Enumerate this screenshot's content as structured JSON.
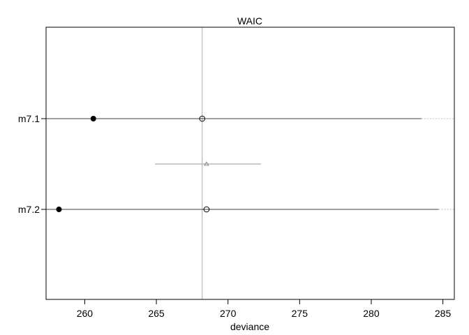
{
  "chart_data": {
    "type": "scatter",
    "title": "WAIC",
    "xlabel": "deviance",
    "ylabel": "",
    "xlim": [
      257.3,
      285.8
    ],
    "x_ticks": [
      260,
      265,
      270,
      275,
      280,
      285
    ],
    "models": [
      {
        "label": "m7.1",
        "in_sample_deviance": 260.6,
        "waic": 268.2,
        "interval": [
          252.9,
          283.5
        ],
        "interval_upper_extended": 286.0
      },
      {
        "label": "m7.2",
        "in_sample_deviance": 258.2,
        "waic": 268.5,
        "interval": [
          252.3,
          284.7
        ],
        "interval_upper_extended": 286.0
      }
    ],
    "difference": {
      "center": 268.5,
      "interval": [
        264.9,
        272.3
      ]
    },
    "reference_line_x": 268.2,
    "colors": {
      "main": "#000000",
      "difference": "#999999",
      "reference": "#aaaaaa",
      "extension": "#bbbbbb"
    }
  }
}
